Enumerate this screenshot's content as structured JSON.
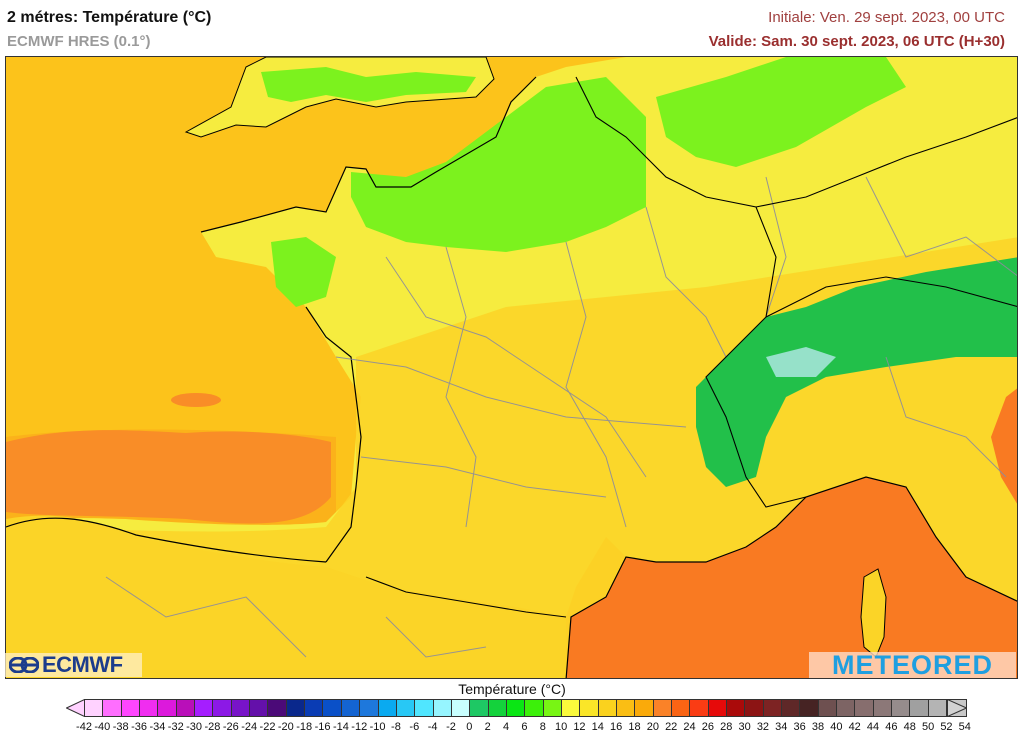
{
  "header": {
    "title": "2 métres: Température (°C)",
    "model": "ECMWF HRES (0.1°)",
    "initial": "Initiale: Ven. 29 sept. 2023, 00 UTC",
    "valid": "Valide: Sam. 30 sept. 2023, 06 UTC (H+30)"
  },
  "map": {
    "region": "France and surroundings",
    "variable": "2m temperature",
    "colors": {
      "sea_west": "#fcc31b",
      "sea_biscay_warm": "#f98d27",
      "sea_med": "#f97a22",
      "land_yellow": "#f6ec3f",
      "land_gold": "#fbd427",
      "land_green": "#7cf21e",
      "alps_green": "#22c04a",
      "coastline": "#000000",
      "borders": "#8c8c9c"
    }
  },
  "logos": {
    "left": "ECMWF",
    "right": "METEORED"
  },
  "colorbar": {
    "title": "Température (°C)",
    "labels": [
      "-42",
      "-40",
      "-38",
      "-36",
      "-34",
      "-32",
      "-30",
      "-28",
      "-26",
      "-24",
      "-22",
      "-20",
      "-18",
      "-16",
      "-14",
      "-12",
      "-10",
      "-8",
      "-6",
      "-4",
      "-2",
      "0",
      "2",
      "4",
      "6",
      "8",
      "10",
      "12",
      "14",
      "16",
      "18",
      "20",
      "22",
      "24",
      "26",
      "28",
      "30",
      "32",
      "34",
      "36",
      "38",
      "40",
      "42",
      "44",
      "46",
      "48",
      "50",
      "52",
      "54"
    ],
    "colors": [
      "#ffd2ff",
      "#ff6eff",
      "#ff46ff",
      "#f02df0",
      "#dc19dc",
      "#b90fb9",
      "#a51eff",
      "#8c19e6",
      "#7814c8",
      "#6410aa",
      "#4b0a78",
      "#0a288c",
      "#0a3cb4",
      "#0a50c8",
      "#1464d2",
      "#1e78dc",
      "#0aaaf0",
      "#28c8f5",
      "#50e6ff",
      "#96f5ff",
      "#c8ffff",
      "#1ec864",
      "#14d23c",
      "#0ae614",
      "#3cf00a",
      "#78f514",
      "#fafa3c",
      "#fae628",
      "#fad21e",
      "#fabe14",
      "#faaa0a",
      "#fa8228",
      "#fa6414",
      "#fa3c14",
      "#e60a0a",
      "#aa0a0a",
      "#8c1414",
      "#7d2323",
      "#5f2828",
      "#462323",
      "#6e5050",
      "#7d6464",
      "#876e6e",
      "#8c7878",
      "#968c8c",
      "#a0a0a0",
      "#b4b4b4",
      "#c8c8c8"
    ],
    "min_arrow_color": "#ffd2ff",
    "max_arrow_color": "#d2d2d2"
  }
}
